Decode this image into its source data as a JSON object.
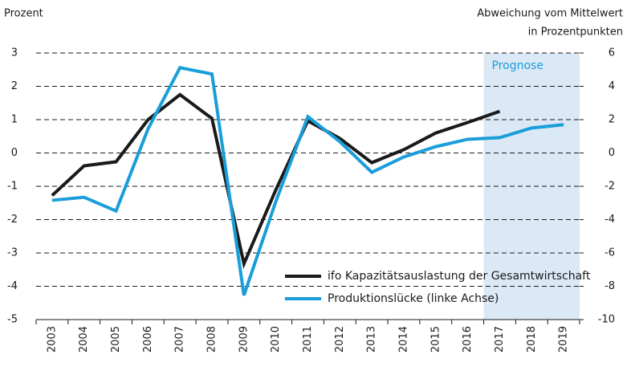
{
  "chart_data": {
    "type": "line",
    "ylabel": "Prozent",
    "y2label": [
      "Abweichung vom Mittelwert",
      "in Prozentpunkten"
    ],
    "categories": [
      "2003",
      "2004",
      "2005",
      "2006",
      "2007",
      "2008",
      "2009",
      "2010",
      "2011",
      "2012",
      "2013",
      "2014",
      "2015",
      "2016",
      "2017",
      "2018",
      "2019"
    ],
    "series": [
      {
        "name": "ifo Kapazitätsauslastung der Gesamtwirtschaft",
        "color": "#1a1a1a",
        "axis": "y2",
        "values": [
          -2.55,
          -0.77,
          -0.53,
          2.0,
          3.5,
          2.07,
          -6.65,
          -2.2,
          1.93,
          0.87,
          -0.58,
          0.2,
          1.2,
          1.83,
          2.5,
          null,
          null
        ]
      },
      {
        "name": "Produktionslücke (linke Achse)",
        "color": "#1a9ed9",
        "values": [
          -1.42,
          -1.33,
          -1.74,
          0.72,
          2.56,
          2.37,
          -4.27,
          -1.45,
          1.09,
          0.34,
          -0.58,
          -0.12,
          0.19,
          0.41,
          0.46,
          0.75,
          0.85
        ]
      }
    ],
    "ylim": [
      -5,
      3
    ],
    "yticks": [
      -5,
      -4,
      -3,
      -2,
      -1,
      0,
      1,
      2,
      3
    ],
    "y2lim": [
      -10,
      6
    ],
    "y2ticks": [
      -10,
      -8,
      -6,
      -4,
      -2,
      0,
      2,
      4,
      6
    ],
    "grid": true,
    "legend": "lower right",
    "annotation": {
      "text": "Prognose",
      "from": "2017",
      "to": "2019",
      "color": "#dbe8f5"
    }
  }
}
